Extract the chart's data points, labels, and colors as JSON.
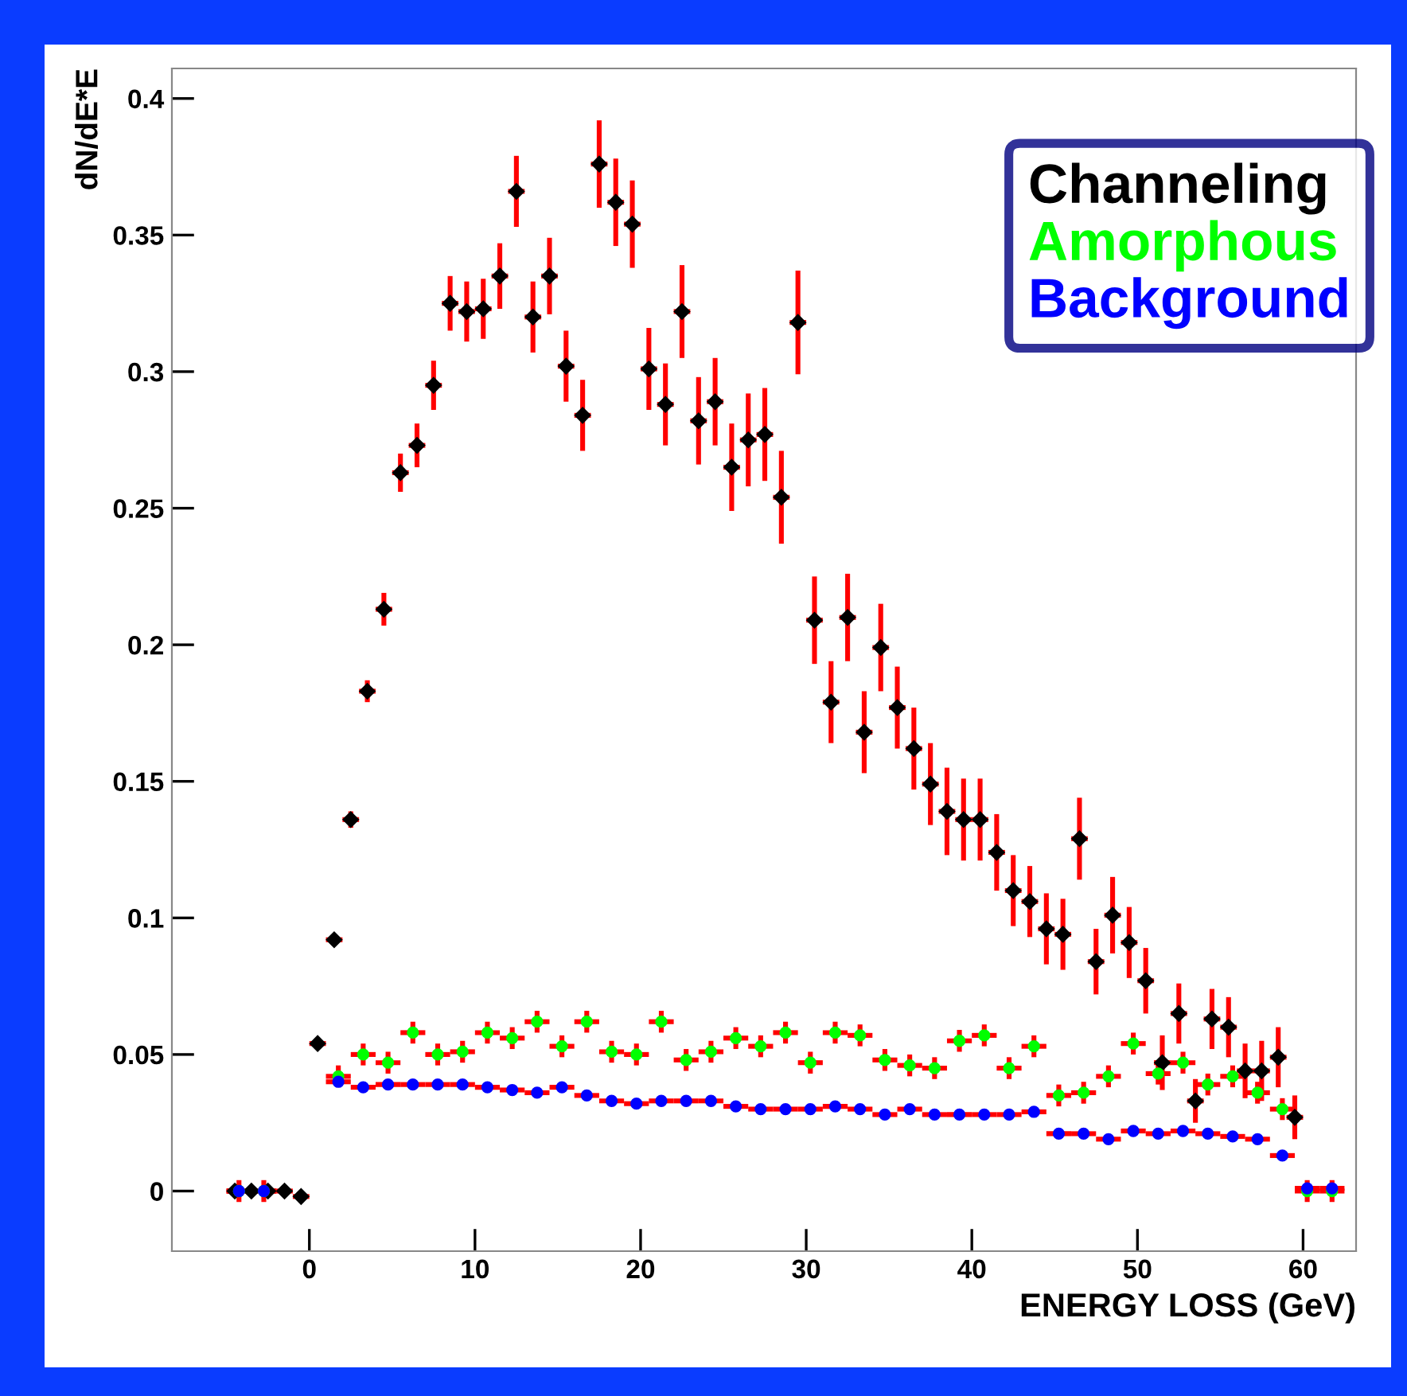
{
  "chart_data": {
    "type": "scatter",
    "xlabel": "ENERGY LOSS (GeV)",
    "ylabel": "dN/dE*E",
    "xlim": [
      -8.3,
      63.2
    ],
    "xticks": [
      0,
      10,
      20,
      30,
      40,
      50,
      60
    ],
    "ylim": [
      -0.022,
      0.411
    ],
    "yticks": [
      0,
      0.05,
      0.1,
      0.15,
      0.2,
      0.25,
      0.3,
      0.35,
      0.4
    ],
    "grid": false,
    "legend": "top right",
    "series": [
      {
        "name": "Channeling",
        "color": "#000000",
        "marker": "diamond",
        "x": [
          -4.5,
          -3.5,
          -2.5,
          -1.5,
          -0.5,
          0.5,
          1.5,
          2.5,
          3.5,
          4.5,
          5.5,
          6.5,
          7.5,
          8.5,
          9.5,
          10.5,
          11.5,
          12.5,
          13.5,
          14.5,
          15.5,
          16.5,
          17.5,
          18.5,
          19.5,
          20.5,
          21.5,
          22.5,
          23.5,
          24.5,
          25.5,
          26.5,
          27.5,
          28.5,
          29.5,
          30.5,
          31.5,
          32.5,
          33.5,
          34.5,
          35.5,
          36.5,
          37.5,
          38.5,
          39.5,
          40.5,
          41.5,
          42.5,
          43.5,
          44.5,
          45.5,
          46.5,
          47.5,
          48.5,
          49.5,
          50.5,
          51.5,
          52.5,
          53.5,
          54.5,
          55.5,
          56.5,
          57.5,
          58.5,
          59.5
        ],
        "values": [
          0,
          0,
          0,
          0,
          -0.002,
          0.054,
          0.092,
          0.136,
          0.183,
          0.213,
          0.263,
          0.273,
          0.295,
          0.325,
          0.322,
          0.323,
          0.335,
          0.366,
          0.32,
          0.335,
          0.302,
          0.284,
          0.376,
          0.362,
          0.354,
          0.301,
          0.288,
          0.322,
          0.282,
          0.289,
          0.265,
          0.275,
          0.277,
          0.254,
          0.318,
          0.209,
          0.179,
          0.21,
          0.168,
          0.199,
          0.177,
          0.162,
          0.149,
          0.139,
          0.136,
          0.136,
          0.124,
          0.11,
          0.106,
          0.096,
          0.094,
          0.129,
          0.084,
          0.101,
          0.091,
          0.077,
          0.047,
          0.065,
          0.033,
          0.063,
          0.06,
          0.044,
          0.044,
          0.049,
          0.027
        ],
        "errors": [
          null,
          null,
          null,
          null,
          null,
          null,
          null,
          0.003,
          0.004,
          0.006,
          0.007,
          0.008,
          0.009,
          0.01,
          0.011,
          0.011,
          0.012,
          0.013,
          0.013,
          0.014,
          0.013,
          0.013,
          0.016,
          0.016,
          0.016,
          0.015,
          0.015,
          0.017,
          0.016,
          0.016,
          0.016,
          0.017,
          0.017,
          0.017,
          0.019,
          0.016,
          0.015,
          0.016,
          0.015,
          0.016,
          0.015,
          0.015,
          0.015,
          0.016,
          0.015,
          0.015,
          0.014,
          0.013,
          0.013,
          0.013,
          0.013,
          0.015,
          0.012,
          0.014,
          0.013,
          0.012,
          0.01,
          0.011,
          0.008,
          0.011,
          0.011,
          0.01,
          0.011,
          0.011,
          0.008
        ],
        "xerrors": [
          0.5,
          null,
          0.5,
          0.5,
          0.5,
          0.5,
          0.5,
          0.5,
          0.5,
          0.5,
          0.5,
          0.5,
          0.5,
          0.5,
          0.5,
          0.5,
          0.5,
          0.5,
          0.5,
          0.5,
          0.5,
          0.5,
          0.5,
          0.5,
          0.5,
          0.5,
          0.5,
          0.5,
          0.5,
          0.5,
          0.5,
          0.5,
          0.5,
          0.5,
          0.5,
          0.5,
          0.5,
          0.5,
          0.5,
          0.5,
          0.5,
          0.5,
          0.5,
          0.5,
          0.5,
          0.5,
          0.5,
          0.5,
          0.5,
          0.5,
          0.5,
          0.5,
          0.5,
          0.5,
          0.5,
          0.5,
          0.5,
          0.5,
          0.5,
          0.5,
          0.5,
          0.5,
          0.5,
          0.5,
          0.5
        ]
      },
      {
        "name": "Amorphous",
        "color": "#00ff00",
        "marker": "circle",
        "x": [
          -4.25,
          -2.75,
          1.75,
          3.25,
          4.75,
          6.25,
          7.75,
          9.25,
          10.75,
          12.25,
          13.75,
          15.25,
          16.75,
          18.25,
          19.75,
          21.25,
          22.75,
          24.25,
          25.75,
          27.25,
          28.75,
          30.25,
          31.75,
          33.25,
          34.75,
          36.25,
          37.75,
          39.25,
          40.75,
          42.25,
          43.75,
          45.25,
          46.75,
          48.25,
          49.75,
          51.25,
          52.75,
          54.25,
          55.75,
          57.25,
          58.75,
          60.25,
          61.75
        ],
        "values": [
          0,
          0,
          0.042,
          0.05,
          0.047,
          0.058,
          0.05,
          0.051,
          0.058,
          0.056,
          0.062,
          0.053,
          0.062,
          0.051,
          0.05,
          0.062,
          0.048,
          0.051,
          0.056,
          0.053,
          0.058,
          0.047,
          0.058,
          0.057,
          0.048,
          0.046,
          0.045,
          0.055,
          0.057,
          0.045,
          0.053,
          0.035,
          0.036,
          0.042,
          0.054,
          0.043,
          0.047,
          0.039,
          0.042,
          0.036,
          0.03,
          0,
          0
        ],
        "errors": [
          0.004,
          0.004,
          0.004,
          0.004,
          0.004,
          0.004,
          0.004,
          0.004,
          0.004,
          0.004,
          0.004,
          0.004,
          0.004,
          0.004,
          0.004,
          0.004,
          0.004,
          0.004,
          0.004,
          0.004,
          0.004,
          0.004,
          0.004,
          0.004,
          0.004,
          0.004,
          0.004,
          0.004,
          0.004,
          0.004,
          0.004,
          0.004,
          0.004,
          0.004,
          0.004,
          0.004,
          0.004,
          0.004,
          0.004,
          0.004,
          0.004,
          0.004,
          0.004
        ],
        "xerrors": [
          0.75,
          0.75,
          0.75,
          0.75,
          0.75,
          0.75,
          0.75,
          0.75,
          0.75,
          0.75,
          0.75,
          0.75,
          0.75,
          0.75,
          0.75,
          0.75,
          0.75,
          0.75,
          0.75,
          0.75,
          0.75,
          0.75,
          0.75,
          0.75,
          0.75,
          0.75,
          0.75,
          0.75,
          0.75,
          0.75,
          0.75,
          0.75,
          0.75,
          0.75,
          0.75,
          0.75,
          0.75,
          0.75,
          0.75,
          0.75,
          0.75,
          0.75,
          0.75
        ]
      },
      {
        "name": "Background",
        "color": "#0000ff",
        "marker": "circle",
        "x": [
          -4.25,
          -2.75,
          1.75,
          3.25,
          4.75,
          6.25,
          7.75,
          9.25,
          10.75,
          12.25,
          13.75,
          15.25,
          16.75,
          18.25,
          19.75,
          21.25,
          22.75,
          24.25,
          25.75,
          27.25,
          28.75,
          30.25,
          31.75,
          33.25,
          34.75,
          36.25,
          37.75,
          39.25,
          40.75,
          42.25,
          43.75,
          45.25,
          46.75,
          48.25,
          49.75,
          51.25,
          52.75,
          54.25,
          55.75,
          57.25,
          58.75,
          60.25,
          61.75
        ],
        "values": [
          0,
          0,
          0.04,
          0.038,
          0.039,
          0.039,
          0.039,
          0.039,
          0.038,
          0.037,
          0.036,
          0.038,
          0.035,
          0.033,
          0.032,
          0.033,
          0.033,
          0.033,
          0.031,
          0.03,
          0.03,
          0.03,
          0.031,
          0.03,
          0.028,
          0.03,
          0.028,
          0.028,
          0.028,
          0.028,
          0.029,
          0.021,
          0.021,
          0.019,
          0.022,
          0.021,
          0.022,
          0.021,
          0.02,
          0.019,
          0.013,
          0.001,
          0.001
        ],
        "errors": [
          0.001,
          0.001,
          0.001,
          0.001,
          0.001,
          0.001,
          0.001,
          0.001,
          0.001,
          0.001,
          0.001,
          0.001,
          0.001,
          0.001,
          0.001,
          0.001,
          0.001,
          0.001,
          0.001,
          0.001,
          0.001,
          0.001,
          0.001,
          0.001,
          0.001,
          0.001,
          0.001,
          0.001,
          0.001,
          0.001,
          0.001,
          0.001,
          0.001,
          0.001,
          0.001,
          0.001,
          0.001,
          0.001,
          0.001,
          0.001,
          0.001,
          0.001,
          0.001
        ],
        "xerrors": [
          0.75,
          0.75,
          0.75,
          0.75,
          0.75,
          0.75,
          0.75,
          0.75,
          0.75,
          0.75,
          0.75,
          0.75,
          0.75,
          0.75,
          0.75,
          0.75,
          0.75,
          0.75,
          0.75,
          0.75,
          0.75,
          0.75,
          0.75,
          0.75,
          0.75,
          0.75,
          0.75,
          0.75,
          0.75,
          0.75,
          0.75,
          0.75,
          0.75,
          0.75,
          0.75,
          0.75,
          0.75,
          0.75,
          0.75,
          0.75,
          0.75,
          0.75,
          0.75
        ]
      }
    ]
  }
}
